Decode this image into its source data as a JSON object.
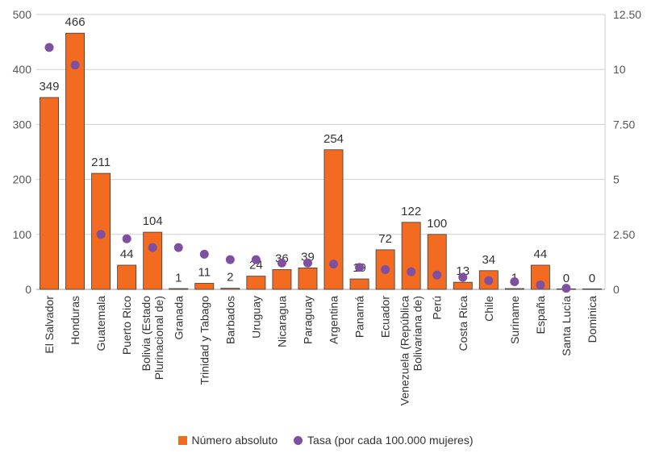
{
  "chart_data": {
    "type": "bar",
    "title": "",
    "xlabel": "",
    "ylabel": "",
    "ylim": [
      0,
      500
    ],
    "y_ticks": [
      "0",
      "100",
      "200",
      "300",
      "400",
      "500"
    ],
    "y2lim": [
      0,
      12.5
    ],
    "y2_ticks": [
      "0",
      "2.50",
      "5",
      "7.50",
      "10",
      "12.50"
    ],
    "categories": [
      "El Salvador",
      "Honduras",
      "Guatemala",
      "Puerto Rico",
      "Bolivia (Estado Plurinacional de)",
      "Granada",
      "Trinidad y Tabago",
      "Barbados",
      "Uruguay",
      "Nicaragua",
      "Paraguay",
      "Argentina",
      "Panamá",
      "Ecuador",
      "Venezuela (República Bolivariana de)",
      "Perú",
      "Costa Rica",
      "Chile",
      "Suriname",
      "España",
      "Santa Lucía",
      "Dominica"
    ],
    "category_lines": [
      [
        "El Salvador"
      ],
      [
        "Honduras"
      ],
      [
        "Guatemala"
      ],
      [
        "Puerto Rico"
      ],
      [
        "Bolivia (Estado",
        "Plurinacional de)"
      ],
      [
        "Granada"
      ],
      [
        "Trinidad y Tabago"
      ],
      [
        "Barbados"
      ],
      [
        "Uruguay"
      ],
      [
        "Nicaragua"
      ],
      [
        "Paraguay"
      ],
      [
        "Argentina"
      ],
      [
        "Panamá"
      ],
      [
        "Ecuador"
      ],
      [
        "Venezuela (República",
        "Bolivariana de)"
      ],
      [
        "Perú"
      ],
      [
        "Costa Rica"
      ],
      [
        "Chile"
      ],
      [
        "Suriname"
      ],
      [
        "España"
      ],
      [
        "Santa Lucía"
      ],
      [
        "Dominica"
      ]
    ],
    "series": [
      {
        "name": "Número absoluto",
        "kind": "bar",
        "axis": "left",
        "color": "#F26B21",
        "values": [
          349,
          466,
          211,
          44,
          104,
          1,
          11,
          2,
          24,
          36,
          39,
          254,
          19,
          72,
          122,
          100,
          13,
          34,
          1,
          44,
          0,
          0
        ]
      },
      {
        "name": "Tasa (por cada 100.000 mujeres)",
        "kind": "dot",
        "axis": "right",
        "color": "#7F4FA0",
        "values": [
          11.0,
          10.2,
          2.5,
          2.3,
          1.9,
          1.9,
          1.6,
          1.35,
          1.35,
          1.2,
          1.2,
          1.15,
          1.0,
          0.9,
          0.8,
          0.65,
          0.55,
          0.4,
          0.35,
          0.2,
          0.05,
          null
        ]
      }
    ],
    "grid": true,
    "legend_position": "bottom"
  }
}
